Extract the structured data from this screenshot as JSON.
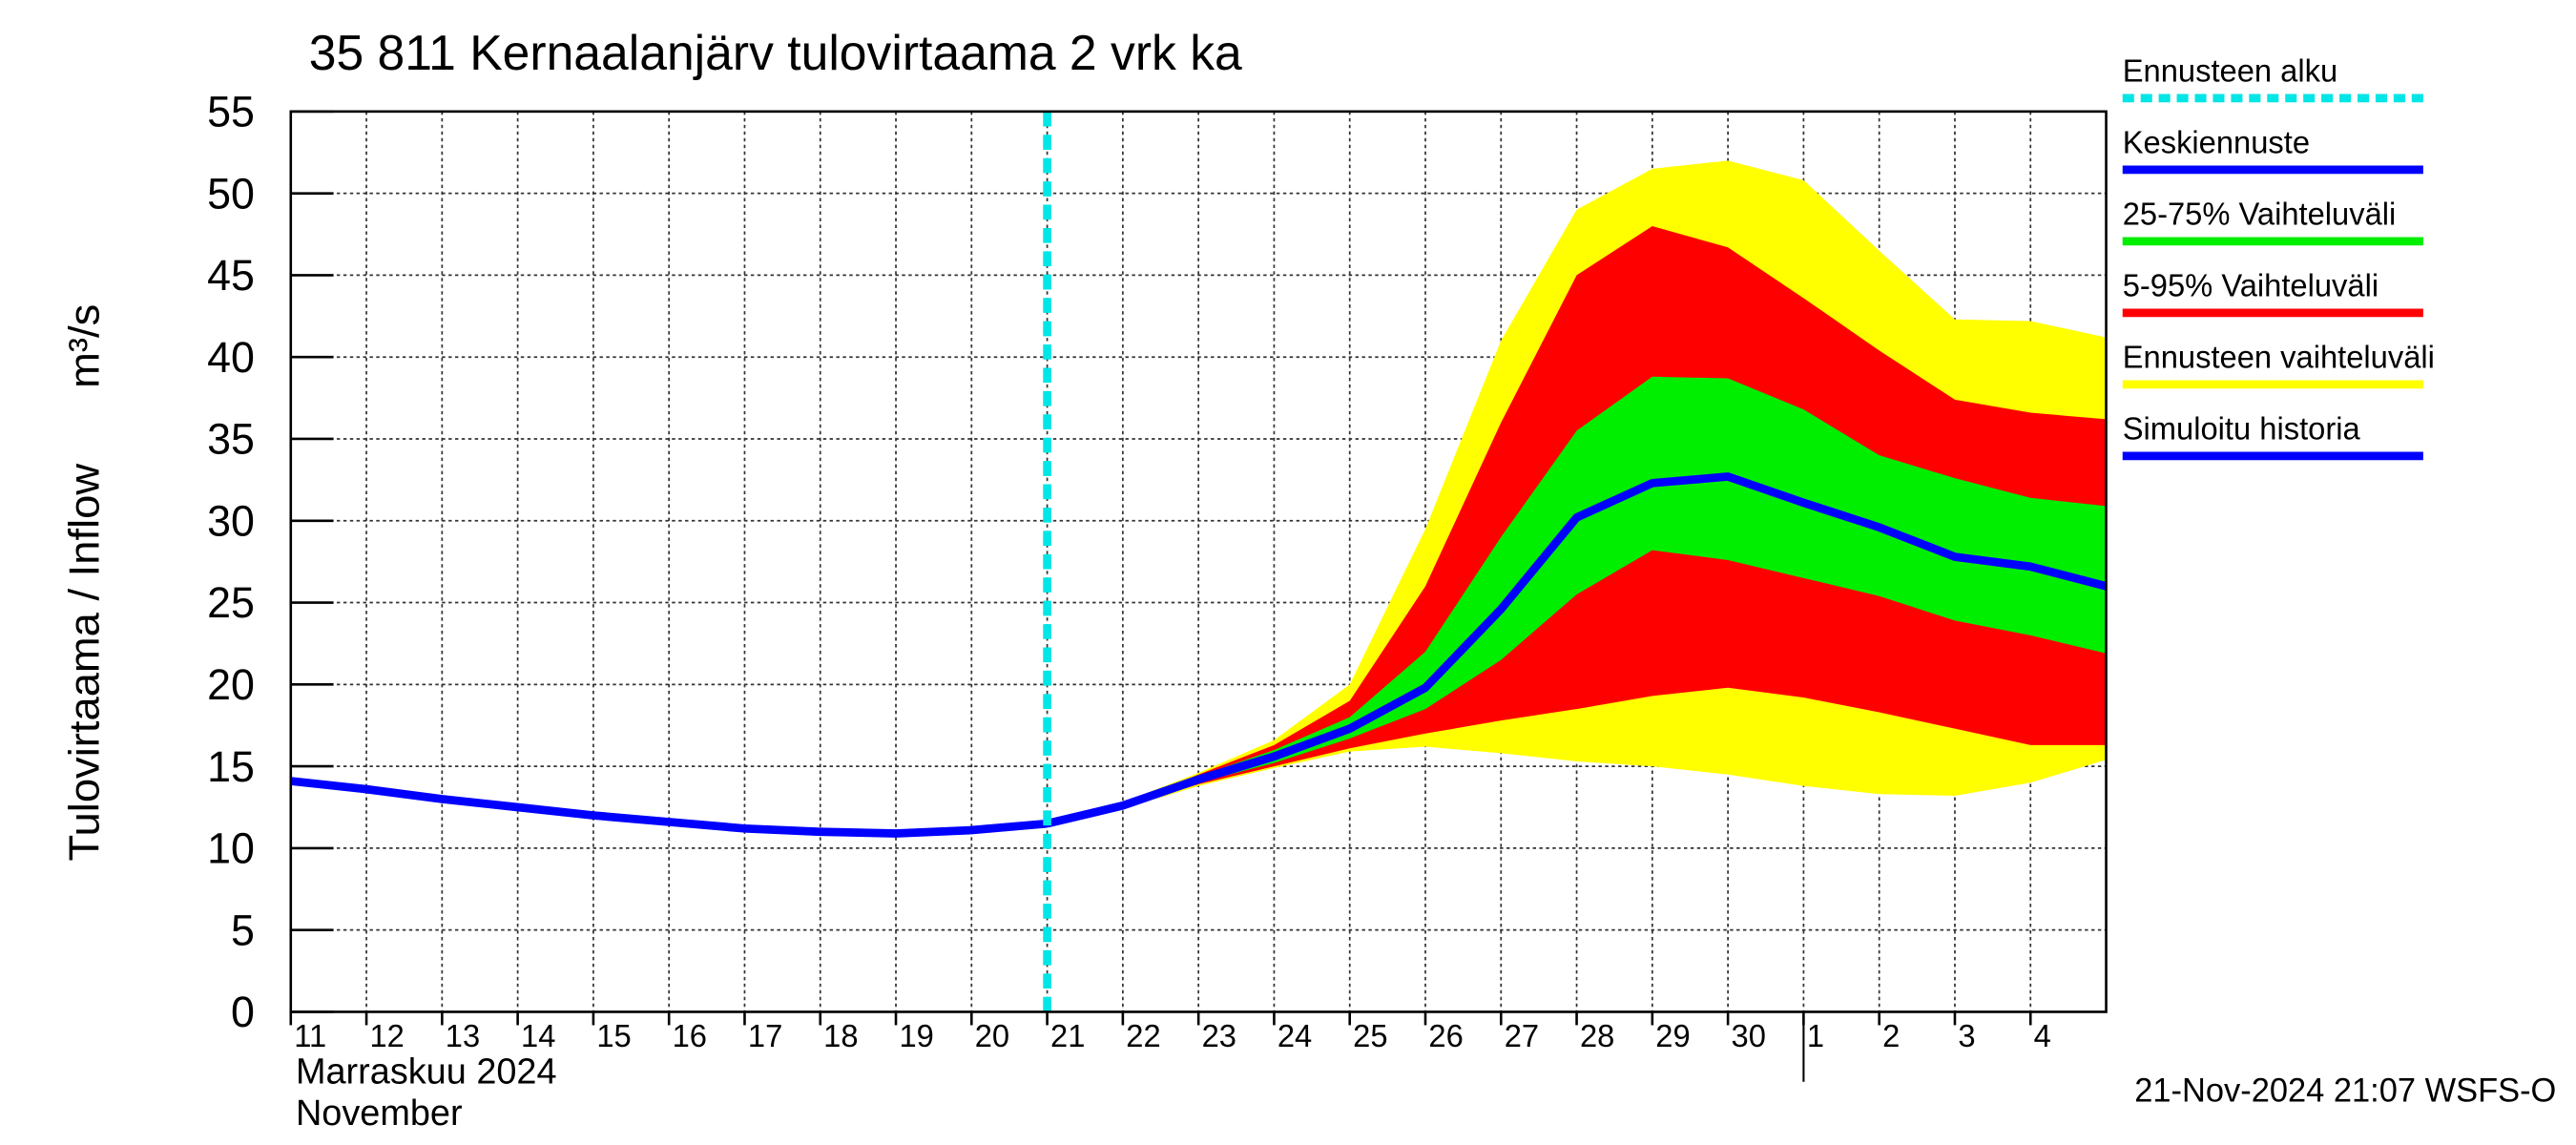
{
  "chart_data": {
    "type": "line",
    "title": "35 811 Kernaalanjärv tulovirtaama 2 vrk ka",
    "y_label": "Tulovirtaama / Inflow",
    "y_unit": "m³/s",
    "x_label_fi": "Marraskuu 2024",
    "x_label_en": "November",
    "footer": "21-Nov-2024 21:07 WSFS-O",
    "x": [
      "2024-11-11",
      "2024-11-12",
      "2024-11-13",
      "2024-11-14",
      "2024-11-15",
      "2024-11-16",
      "2024-11-17",
      "2024-11-18",
      "2024-11-19",
      "2024-11-20",
      "2024-11-21",
      "2024-11-22",
      "2024-11-23",
      "2024-11-24",
      "2024-11-25",
      "2024-11-26",
      "2024-11-27",
      "2024-11-28",
      "2024-11-29",
      "2024-11-30",
      "2024-12-01",
      "2024-12-02",
      "2024-12-03",
      "2024-12-04",
      "2024-12-05"
    ],
    "xlim": [
      "2024-11-11",
      "2024-12-05"
    ],
    "xticks": [
      {
        "value": "2024-11-11",
        "label": "11"
      },
      {
        "value": "2024-11-12",
        "label": "12"
      },
      {
        "value": "2024-11-13",
        "label": "13"
      },
      {
        "value": "2024-11-14",
        "label": "14"
      },
      {
        "value": "2024-11-15",
        "label": "15"
      },
      {
        "value": "2024-11-16",
        "label": "16"
      },
      {
        "value": "2024-11-17",
        "label": "17"
      },
      {
        "value": "2024-11-18",
        "label": "18"
      },
      {
        "value": "2024-11-19",
        "label": "19"
      },
      {
        "value": "2024-11-20",
        "label": "20"
      },
      {
        "value": "2024-11-21",
        "label": "21"
      },
      {
        "value": "2024-11-22",
        "label": "22"
      },
      {
        "value": "2024-11-23",
        "label": "23"
      },
      {
        "value": "2024-11-24",
        "label": "24"
      },
      {
        "value": "2024-11-25",
        "label": "25"
      },
      {
        "value": "2024-11-26",
        "label": "26"
      },
      {
        "value": "2024-11-27",
        "label": "27"
      },
      {
        "value": "2024-11-28",
        "label": "28"
      },
      {
        "value": "2024-11-29",
        "label": "29"
      },
      {
        "value": "2024-11-30",
        "label": "30"
      },
      {
        "value": "2024-12-01",
        "label": "1"
      },
      {
        "value": "2024-12-02",
        "label": "2"
      },
      {
        "value": "2024-12-03",
        "label": "3"
      },
      {
        "value": "2024-12-04",
        "label": "4"
      }
    ],
    "ylim": [
      0,
      55
    ],
    "yticks": [
      0,
      5,
      10,
      15,
      20,
      25,
      30,
      35,
      40,
      45,
      50,
      55
    ],
    "grid": true,
    "forecast_start": {
      "name": "Ennusteen alku",
      "x": "2024-11-21",
      "color": "#00e5e5"
    },
    "series": [
      {
        "name": "Keskiennuste",
        "color": "#0000ff",
        "values": [
          null,
          null,
          null,
          null,
          null,
          null,
          null,
          null,
          null,
          null,
          11.5,
          12.6,
          14.2,
          15.6,
          17.3,
          19.8,
          24.6,
          30.2,
          32.3,
          32.7,
          31.1,
          29.6,
          27.8,
          27.2,
          26.0
        ]
      },
      {
        "name": "25-75% Vaihteluväli",
        "color": "#00ee00",
        "low": [
          null,
          null,
          null,
          null,
          null,
          null,
          null,
          null,
          null,
          null,
          11.5,
          12.6,
          14.0,
          15.2,
          16.7,
          18.5,
          21.5,
          25.5,
          28.2,
          27.6,
          26.5,
          25.4,
          23.9,
          23.0,
          21.9
        ],
        "high": [
          null,
          null,
          null,
          null,
          null,
          null,
          null,
          null,
          null,
          null,
          11.5,
          12.6,
          14.4,
          16.0,
          18.0,
          22.0,
          29.0,
          35.5,
          38.8,
          38.7,
          36.8,
          34.0,
          32.6,
          31.4,
          30.9
        ]
      },
      {
        "name": "5-95% Vaihteluväli",
        "color": "#ff0000",
        "low": [
          null,
          null,
          null,
          null,
          null,
          null,
          null,
          null,
          null,
          null,
          11.5,
          12.5,
          13.9,
          15.0,
          16.1,
          17.0,
          17.8,
          18.5,
          19.3,
          19.8,
          19.2,
          18.3,
          17.3,
          16.3,
          16.3
        ],
        "high": [
          null,
          null,
          null,
          null,
          null,
          null,
          null,
          null,
          null,
          null,
          11.5,
          12.7,
          14.5,
          16.3,
          19.0,
          26.0,
          36.0,
          45.0,
          48.0,
          46.7,
          43.6,
          40.4,
          37.4,
          36.6,
          36.2
        ]
      },
      {
        "name": "Ennusteen vaihteluväli",
        "color": "#ffff00",
        "low": [
          null,
          null,
          null,
          null,
          null,
          null,
          null,
          null,
          null,
          null,
          11.5,
          12.4,
          13.8,
          14.9,
          15.9,
          16.2,
          15.8,
          15.3,
          15.0,
          14.5,
          13.8,
          13.3,
          13.2,
          14.0,
          15.4
        ],
        "high": [
          null,
          null,
          null,
          null,
          null,
          null,
          null,
          null,
          null,
          null,
          11.5,
          12.8,
          14.6,
          16.6,
          20.0,
          29.5,
          41.0,
          49.0,
          51.5,
          52.0,
          50.8,
          46.5,
          42.3,
          42.2,
          41.2
        ]
      },
      {
        "name": "Simuloitu historia",
        "color": "#0000ff",
        "values": [
          14.1,
          13.6,
          13.0,
          12.5,
          12.0,
          11.6,
          11.2,
          11.0,
          10.9,
          11.1,
          11.5,
          null,
          null,
          null,
          null,
          null,
          null,
          null,
          null,
          null,
          null,
          null,
          null,
          null,
          null
        ]
      }
    ]
  }
}
